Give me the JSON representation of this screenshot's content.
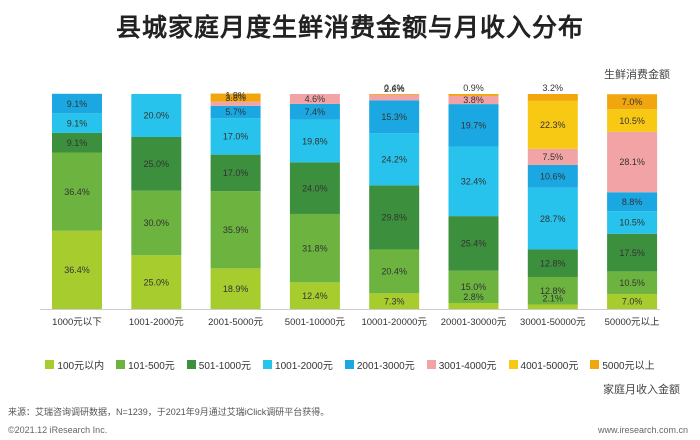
{
  "title": "县城家庭月度生鲜消费金额与月收入分布",
  "series_axis_label": "生鲜消费金额",
  "x_axis_title": "家庭月收入金额",
  "source": "来源：艾瑞咨询调研数据，N=1239，于2021年9月通过艾瑞iClick调研平台获得。",
  "copyright": "©2021.12 iResearch Inc.",
  "website": "www.iresearch.com.cn",
  "colors": {
    "s1": "#a6cc2e",
    "s2": "#6cb33f",
    "s3": "#3c8f3c",
    "s4": "#27c3ec",
    "s5": "#1ba7e2",
    "s6": "#f2a3a6",
    "s7": "#f7c814",
    "s8": "#f2a60d"
  },
  "chart_data": {
    "type": "bar",
    "stacked": true,
    "unit": "%",
    "categories": [
      "1000元以下",
      "1001-2000元",
      "2001-5000元",
      "5001-10000元",
      "10001-20000元",
      "20001-30000元",
      "30001-50000元",
      "50000元以上"
    ],
    "series": [
      {
        "name": "100元以内",
        "values": [
          36.4,
          25.0,
          18.9,
          12.4,
          7.3,
          2.8,
          2.1,
          7.0
        ]
      },
      {
        "name": "101-500元",
        "values": [
          36.4,
          30.0,
          35.9,
          31.8,
          20.4,
          15.0,
          12.8,
          10.5
        ]
      },
      {
        "name": "501-1000元",
        "values": [
          9.1,
          25.0,
          17.0,
          24.0,
          29.8,
          25.4,
          12.8,
          17.5
        ]
      },
      {
        "name": "1001-2000元",
        "values": [
          9.1,
          20.0,
          17.0,
          19.8,
          24.2,
          32.4,
          28.7,
          10.5
        ]
      },
      {
        "name": "2001-3000元",
        "values": [
          9.1,
          0,
          5.7,
          7.4,
          15.3,
          19.7,
          10.6,
          8.8
        ]
      },
      {
        "name": "3001-4000元",
        "values": [
          0,
          0,
          1.9,
          4.6,
          2.6,
          3.8,
          7.5,
          28.1
        ]
      },
      {
        "name": "4001-5000元",
        "values": [
          0,
          0,
          0,
          0,
          0,
          0,
          22.3,
          10.5
        ]
      },
      {
        "name": "5000元以上",
        "values": [
          0,
          0,
          3.8,
          0,
          0.4,
          0.9,
          3.2,
          7.0
        ]
      }
    ],
    "ylim": [
      0,
      100
    ],
    "legend_position": "bottom"
  }
}
